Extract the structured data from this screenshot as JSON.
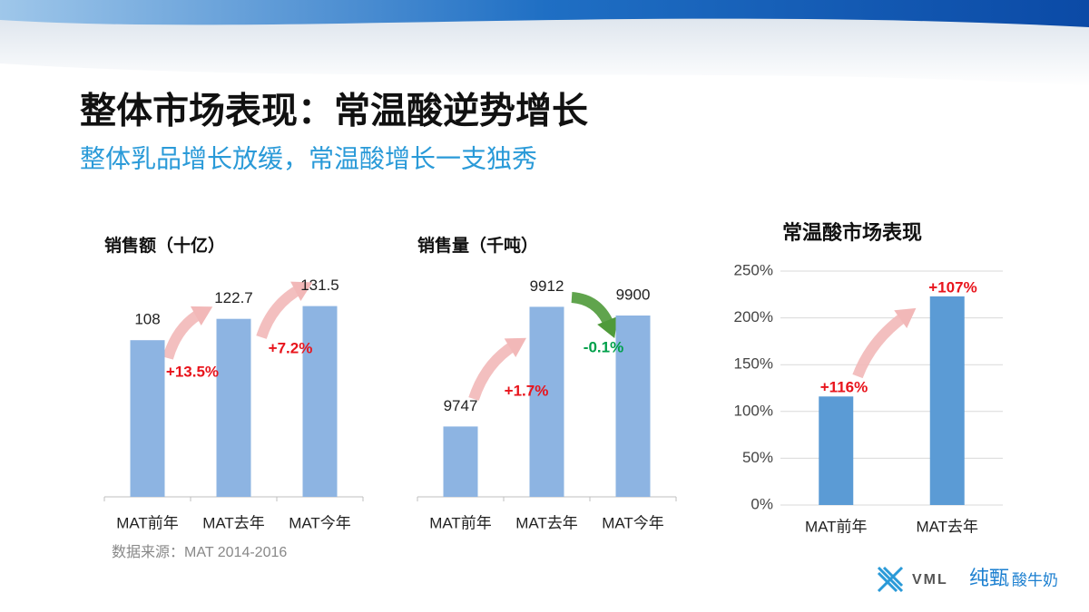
{
  "title": "整体市场表现：常温酸逆势增长",
  "subtitle": "整体乳品增长放缓，常温酸增长一支独秀",
  "source": "数据来源：MAT 2014-2016",
  "logo": {
    "brand": "VML",
    "product": "纯甄",
    "product_suffix": "酸牛奶"
  },
  "chart_data": [
    {
      "type": "bar",
      "title": "销售额（十亿）",
      "categories": [
        "MAT前年",
        "MAT去年",
        "MAT今年"
      ],
      "values": [
        108,
        122.7,
        131.5
      ],
      "color": "#8db4e2",
      "ylim": [
        0,
        135
      ],
      "annotations": [
        {
          "text": "+13.5%",
          "color": "#e8141c"
        },
        {
          "text": "+7.2%",
          "color": "#e8141c"
        }
      ]
    },
    {
      "type": "bar",
      "title": "销售量（千吨）",
      "categories": [
        "MAT前年",
        "MAT去年",
        "MAT今年"
      ],
      "values": [
        9747,
        9912,
        9900
      ],
      "color": "#8db4e2",
      "ylim": [
        9650,
        9920
      ],
      "annotations": [
        {
          "text": "+1.7%",
          "color": "#e8141c"
        },
        {
          "text": "-0.1%",
          "color": "#00a04a"
        }
      ]
    },
    {
      "type": "bar",
      "title": "常温酸市场表现",
      "categories": [
        "MAT前年",
        "MAT去年"
      ],
      "values": [
        116,
        223
      ],
      "color": "#5b9bd5",
      "ylim": [
        0,
        250
      ],
      "grid": true,
      "yticks": [
        {
          "value": 0,
          "label": "0%"
        },
        {
          "value": 50,
          "label": "50%"
        },
        {
          "value": 100,
          "label": "100%"
        },
        {
          "value": 150,
          "label": "150%"
        },
        {
          "value": 200,
          "label": "200%"
        },
        {
          "value": 250,
          "label": "250%"
        }
      ],
      "annotations": [
        {
          "text": "+116%",
          "color": "#e8141c"
        },
        {
          "text": "+107%",
          "color": "#e8141c"
        }
      ]
    }
  ]
}
